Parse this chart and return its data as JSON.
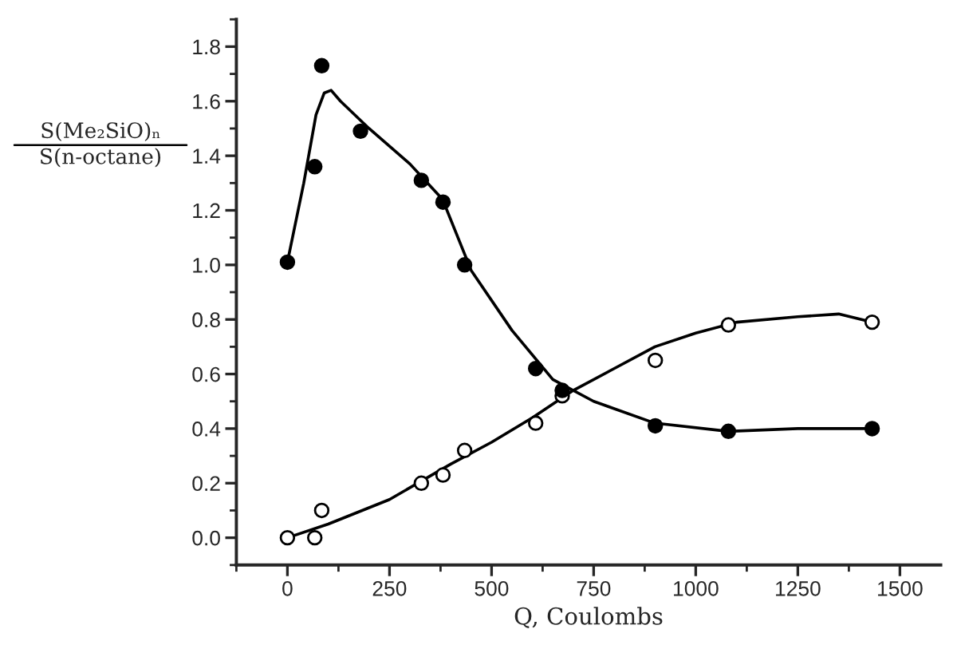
{
  "chart_data": {
    "type": "scatter",
    "xlabel": "Q, Coulombs",
    "ylabel": "S(Me₂SiO)ₙ\nS(n-octane)",
    "xlim": [
      -125,
      1600
    ],
    "xticks": [
      0,
      250,
      500,
      750,
      1000,
      1250,
      1500
    ],
    "ylim": [
      -0.1,
      1.9
    ],
    "yticks": [
      {
        "value": 0.0,
        "label": "0.0"
      },
      {
        "value": 0.2,
        "label": "0.2"
      },
      {
        "value": 0.4,
        "label": "0.4"
      },
      {
        "value": 0.6,
        "label": "0.6"
      },
      {
        "value": 0.8,
        "label": "0.8"
      },
      {
        "value": 1.0,
        "label": "1.0"
      },
      {
        "value": 1.2,
        "label": "1.2"
      },
      {
        "value": 1.4,
        "label": "1.4"
      },
      {
        "value": 1.6,
        "label": "1.6"
      },
      {
        "value": 1.8,
        "label": "1.8"
      }
    ],
    "marker": "circle",
    "series": [
      {
        "type": "line",
        "marker": "none",
        "color": "#000000",
        "x": [
          0,
          40,
          70,
          90,
          107,
          130,
          200,
          300,
          380,
          450,
          550,
          650,
          750,
          900,
          1080,
          1250,
          1432
        ],
        "values": [
          1.01,
          1.3,
          1.55,
          1.63,
          1.64,
          1.6,
          1.5,
          1.37,
          1.24,
          0.98,
          0.76,
          0.58,
          0.5,
          0.42,
          0.39,
          0.4,
          0.4
        ]
      },
      {
        "type": "line",
        "marker": "none",
        "color": "#000000",
        "x": [
          0,
          100,
          250,
          400,
          500,
          600,
          700,
          800,
          900,
          1000,
          1100,
          1250,
          1350,
          1432
        ],
        "values": [
          0.0,
          0.05,
          0.14,
          0.27,
          0.35,
          0.44,
          0.54,
          0.62,
          0.7,
          0.75,
          0.79,
          0.81,
          0.82,
          0.79
        ]
      },
      {
        "color": "#ffffff",
        "x": [
          0,
          67,
          84,
          328,
          381,
          434,
          608,
          673,
          901,
          1080,
          1432
        ],
        "values": [
          0.0,
          0.0,
          0.1,
          0.2,
          0.23,
          0.32,
          0.42,
          0.52,
          0.65,
          0.78,
          0.79
        ]
      },
      {
        "color": "#000000",
        "x": [
          0,
          67,
          84,
          179,
          328,
          381,
          434,
          608,
          673,
          901,
          1080,
          1432
        ],
        "values": [
          1.01,
          1.36,
          1.73,
          1.49,
          1.31,
          1.23,
          1.0,
          0.62,
          0.54,
          0.41,
          0.39,
          0.4
        ]
      }
    ]
  }
}
